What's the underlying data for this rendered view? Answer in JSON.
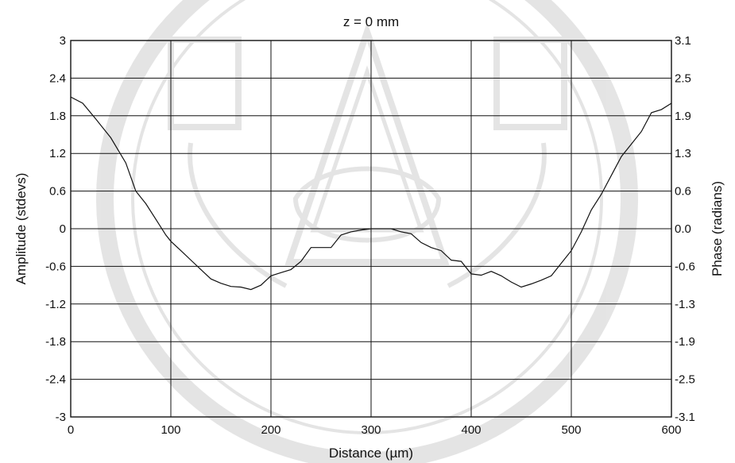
{
  "chart_data": {
    "type": "line",
    "title": "z = 0 mm",
    "xlabel": "Distance (µm)",
    "ylabel": "Amplitude (stdevs)",
    "y2label": "Phase (radians)",
    "xlim": [
      0,
      600
    ],
    "ylim": [
      -3,
      3
    ],
    "x_ticks": [
      0,
      100,
      200,
      300,
      400,
      500,
      600
    ],
    "y_ticks": [
      3,
      2.4,
      1.8,
      1.2,
      0.6,
      0,
      -0.6,
      -1.2,
      -1.8,
      -2.4,
      -3
    ],
    "y2_ticks": [
      "3.1",
      "2.5",
      "1.9",
      "1.3",
      "0.6",
      "0.0",
      "-0.6",
      "-1.3",
      "-1.9",
      "-2.5",
      "-3.1"
    ],
    "grid": true,
    "series": [
      {
        "x": [
          0,
          12,
          25,
          40,
          55,
          65,
          75,
          85,
          95,
          100,
          110,
          120,
          130,
          140,
          150,
          160,
          170,
          180,
          190,
          200,
          210,
          220,
          230,
          240,
          250,
          260,
          270,
          280,
          290,
          300,
          310,
          320,
          330,
          340,
          350,
          360,
          370,
          380,
          390,
          400,
          410,
          420,
          430,
          440,
          450,
          460,
          470,
          480,
          490,
          500,
          510,
          520,
          530,
          540,
          550,
          560,
          570,
          580,
          590,
          600
        ],
        "y": [
          2.1,
          2.0,
          1.75,
          1.45,
          1.05,
          0.6,
          0.4,
          0.15,
          -0.1,
          -0.2,
          -0.35,
          -0.5,
          -0.65,
          -0.8,
          -0.87,
          -0.92,
          -0.93,
          -0.97,
          -0.9,
          -0.75,
          -0.7,
          -0.65,
          -0.52,
          -0.3,
          -0.3,
          -0.3,
          -0.1,
          -0.05,
          -0.02,
          0.0,
          0.0,
          0.0,
          -0.05,
          -0.08,
          -0.22,
          -0.3,
          -0.35,
          -0.5,
          -0.52,
          -0.72,
          -0.74,
          -0.68,
          -0.75,
          -0.85,
          -0.93,
          -0.88,
          -0.82,
          -0.75,
          -0.55,
          -0.35,
          -0.05,
          0.3,
          0.55,
          0.85,
          1.15,
          1.35,
          1.55,
          1.85,
          1.9,
          2.0
        ]
      }
    ]
  }
}
